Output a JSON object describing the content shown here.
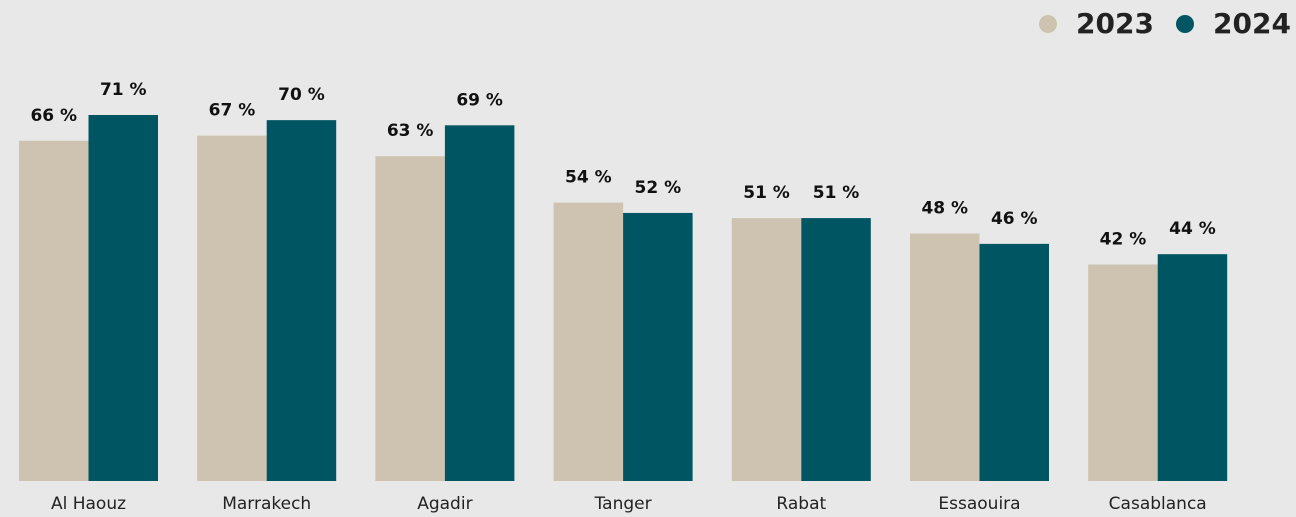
{
  "chart_data": {
    "type": "bar",
    "categories": [
      "Al Haouz",
      "Marrakech",
      "Agadir",
      "Tanger",
      "Rabat",
      "Essaouira",
      "Casablanca"
    ],
    "series": [
      {
        "name": "2023",
        "color": "#cdc3b0",
        "values": [
          66,
          67,
          63,
          54,
          51,
          48,
          42
        ],
        "value_labels": [
          "66 %",
          "67 %",
          "63 %",
          "54 %",
          "51 %",
          "48 %",
          "42 %"
        ]
      },
      {
        "name": "2024",
        "color": "#005563",
        "values": [
          71,
          70,
          69,
          52,
          51,
          46,
          44
        ],
        "value_labels": [
          "71 %",
          "70 %",
          "69 %",
          "52 %",
          "51 %",
          "46 %",
          "44 %"
        ]
      }
    ],
    "ylim": [
      0,
      100
    ],
    "legend": "top-right"
  }
}
